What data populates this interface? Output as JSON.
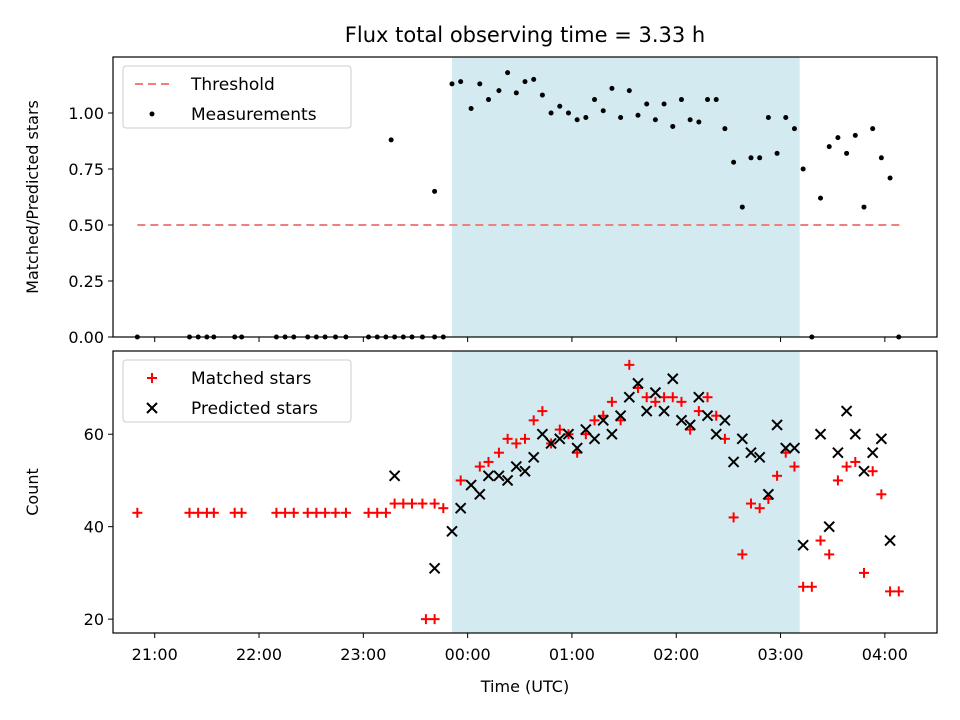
{
  "chart_data": {
    "title": "Flux total observing time = 3.33 h",
    "xlabel": "Time (UTC)",
    "x_unit": "UTC time",
    "xlim": [
      "20:36",
      "04:30"
    ],
    "x_ticks": [
      "21:00",
      "22:00",
      "23:00",
      "00:00",
      "01:00",
      "02:00",
      "03:00",
      "04:00"
    ],
    "shaded_interval": [
      "23:51",
      "03:11"
    ],
    "shade_color": "#d3eaf0",
    "panels": [
      {
        "type": "scatter",
        "ylabel": "Matched/Predicted stars",
        "ylim": [
          0,
          1.25
        ],
        "y_ticks": [
          "0.00",
          "0.25",
          "0.50",
          "0.75",
          "1.00"
        ],
        "legend_position": "top-left",
        "series": [
          {
            "name": "Threshold",
            "type": "line",
            "style": "dashed",
            "color": "#f08080",
            "points": [
              [
                "20:50",
                0.5
              ],
              [
                "04:10",
                0.5
              ]
            ]
          },
          {
            "name": "Measurements",
            "type": "scatter",
            "marker": "dot",
            "color": "#000000",
            "points": [
              [
                "20:50",
                0
              ],
              [
                "21:20",
                0
              ],
              [
                "21:25",
                0
              ],
              [
                "21:30",
                0
              ],
              [
                "21:34",
                0
              ],
              [
                "21:46",
                0
              ],
              [
                "21:50",
                0
              ],
              [
                "22:10",
                0
              ],
              [
                "22:15",
                0
              ],
              [
                "22:20",
                0
              ],
              [
                "22:28",
                0
              ],
              [
                "22:33",
                0
              ],
              [
                "22:38",
                0
              ],
              [
                "22:44",
                0
              ],
              [
                "22:50",
                0
              ],
              [
                "23:03",
                0
              ],
              [
                "23:08",
                0
              ],
              [
                "23:13",
                0
              ],
              [
                "23:18",
                0
              ],
              [
                "23:23",
                0
              ],
              [
                "23:28",
                0
              ],
              [
                "23:34",
                0
              ],
              [
                "23:41",
                0
              ],
              [
                "23:46",
                0
              ],
              [
                "23:16",
                0.88
              ],
              [
                "23:41",
                0.65
              ],
              [
                "23:51",
                1.13
              ],
              [
                "23:56",
                1.14
              ],
              [
                "00:02",
                1.02
              ],
              [
                "00:07",
                1.13
              ],
              [
                "00:12",
                1.06
              ],
              [
                "00:18",
                1.1
              ],
              [
                "00:23",
                1.18
              ],
              [
                "00:28",
                1.09
              ],
              [
                "00:33",
                1.14
              ],
              [
                "00:38",
                1.15
              ],
              [
                "00:43",
                1.08
              ],
              [
                "00:48",
                1.0
              ],
              [
                "00:53",
                1.03
              ],
              [
                "00:58",
                1.0
              ],
              [
                "01:03",
                0.97
              ],
              [
                "01:08",
                0.98
              ],
              [
                "01:13",
                1.06
              ],
              [
                "01:18",
                1.01
              ],
              [
                "01:23",
                1.11
              ],
              [
                "01:28",
                0.98
              ],
              [
                "01:33",
                1.1
              ],
              [
                "01:38",
                0.99
              ],
              [
                "01:43",
                1.04
              ],
              [
                "01:48",
                0.97
              ],
              [
                "01:53",
                1.04
              ],
              [
                "01:58",
                0.94
              ],
              [
                "02:03",
                1.06
              ],
              [
                "02:08",
                0.97
              ],
              [
                "02:13",
                0.96
              ],
              [
                "02:18",
                1.06
              ],
              [
                "02:23",
                1.06
              ],
              [
                "02:28",
                0.93
              ],
              [
                "02:33",
                0.78
              ],
              [
                "02:38",
                0.58
              ],
              [
                "02:43",
                0.8
              ],
              [
                "02:48",
                0.8
              ],
              [
                "02:53",
                0.98
              ],
              [
                "02:58",
                0.82
              ],
              [
                "03:03",
                0.98
              ],
              [
                "03:08",
                0.93
              ],
              [
                "03:13",
                0.75
              ],
              [
                "03:18",
                0
              ],
              [
                "03:23",
                0.62
              ],
              [
                "03:28",
                0.85
              ],
              [
                "03:33",
                0.89
              ],
              [
                "03:38",
                0.82
              ],
              [
                "03:43",
                0.9
              ],
              [
                "03:48",
                0.58
              ],
              [
                "03:53",
                0.93
              ],
              [
                "03:58",
                0.8
              ],
              [
                "04:03",
                0.71
              ],
              [
                "04:08",
                0
              ]
            ]
          }
        ]
      },
      {
        "type": "scatter",
        "ylabel": "Count",
        "ylim": [
          17,
          78
        ],
        "y_ticks": [
          "20",
          "40",
          "60"
        ],
        "legend_position": "top-left",
        "series": [
          {
            "name": "Matched stars",
            "type": "scatter",
            "marker": "plus",
            "color": "#ff0000",
            "points": [
              [
                "20:50",
                43
              ],
              [
                "21:20",
                43
              ],
              [
                "21:25",
                43
              ],
              [
                "21:30",
                43
              ],
              [
                "21:34",
                43
              ],
              [
                "21:46",
                43
              ],
              [
                "21:50",
                43
              ],
              [
                "22:10",
                43
              ],
              [
                "22:15",
                43
              ],
              [
                "22:20",
                43
              ],
              [
                "22:28",
                43
              ],
              [
                "22:33",
                43
              ],
              [
                "22:38",
                43
              ],
              [
                "22:44",
                43
              ],
              [
                "22:50",
                43
              ],
              [
                "23:03",
                43
              ],
              [
                "23:08",
                43
              ],
              [
                "23:13",
                43
              ],
              [
                "23:18",
                45
              ],
              [
                "23:23",
                45
              ],
              [
                "23:28",
                45
              ],
              [
                "23:34",
                45
              ],
              [
                "23:41",
                45
              ],
              [
                "23:36",
                20
              ],
              [
                "23:41",
                20
              ],
              [
                "23:46",
                44
              ],
              [
                "23:56",
                50
              ],
              [
                "24:07",
                53
              ],
              [
                "24:12",
                54
              ],
              [
                "24:18",
                56
              ],
              [
                "24:23",
                59
              ],
              [
                "24:28",
                58
              ],
              [
                "24:33",
                59
              ],
              [
                "24:38",
                63
              ],
              [
                "24:43",
                65
              ],
              [
                "24:48",
                58
              ],
              [
                "24:53",
                61
              ],
              [
                "24:58",
                60
              ],
              [
                "25:03",
                56
              ],
              [
                "25:08",
                60
              ],
              [
                "25:13",
                63
              ],
              [
                "25:18",
                64
              ],
              [
                "25:23",
                67
              ],
              [
                "25:28",
                63
              ],
              [
                "25:33",
                75
              ],
              [
                "25:38",
                70
              ],
              [
                "25:43",
                68
              ],
              [
                "25:48",
                67
              ],
              [
                "25:53",
                68
              ],
              [
                "25:58",
                68
              ],
              [
                "26:03",
                67
              ],
              [
                "26:08",
                61
              ],
              [
                "26:13",
                65
              ],
              [
                "26:18",
                68
              ],
              [
                "26:23",
                64
              ],
              [
                "26:28",
                59
              ],
              [
                "26:33",
                42
              ],
              [
                "26:38",
                34
              ],
              [
                "26:43",
                45
              ],
              [
                "26:48",
                44
              ],
              [
                "26:53",
                46
              ],
              [
                "26:58",
                51
              ],
              [
                "27:03",
                56
              ],
              [
                "27:08",
                53
              ],
              [
                "27:13",
                27
              ],
              [
                "27:18",
                27
              ],
              [
                "27:23",
                37
              ],
              [
                "27:28",
                34
              ],
              [
                "27:33",
                50
              ],
              [
                "27:38",
                53
              ],
              [
                "27:43",
                54
              ],
              [
                "27:48",
                30
              ],
              [
                "27:53",
                52
              ],
              [
                "27:58",
                47
              ],
              [
                "28:03",
                26
              ],
              [
                "28:08",
                26
              ]
            ]
          },
          {
            "name": "Predicted stars",
            "type": "scatter",
            "marker": "x",
            "color": "#000000",
            "points": [
              [
                "23:18",
                51
              ],
              [
                "23:41",
                31
              ],
              [
                "23:51",
                39
              ],
              [
                "23:56",
                44
              ],
              [
                "24:02",
                49
              ],
              [
                "24:07",
                47
              ],
              [
                "24:12",
                51
              ],
              [
                "24:18",
                51
              ],
              [
                "24:23",
                50
              ],
              [
                "24:28",
                53
              ],
              [
                "24:33",
                52
              ],
              [
                "24:38",
                55
              ],
              [
                "24:43",
                60
              ],
              [
                "24:48",
                58
              ],
              [
                "24:53",
                59
              ],
              [
                "24:58",
                60
              ],
              [
                "25:03",
                57
              ],
              [
                "25:08",
                61
              ],
              [
                "25:13",
                59
              ],
              [
                "25:18",
                63
              ],
              [
                "25:23",
                60
              ],
              [
                "25:28",
                64
              ],
              [
                "25:33",
                68
              ],
              [
                "25:38",
                71
              ],
              [
                "25:43",
                65
              ],
              [
                "25:48",
                69
              ],
              [
                "25:53",
                65
              ],
              [
                "25:58",
                72
              ],
              [
                "26:03",
                63
              ],
              [
                "26:08",
                62
              ],
              [
                "26:13",
                68
              ],
              [
                "26:18",
                64
              ],
              [
                "26:23",
                60
              ],
              [
                "26:28",
                63
              ],
              [
                "26:33",
                54
              ],
              [
                "26:38",
                59
              ],
              [
                "26:43",
                56
              ],
              [
                "26:48",
                55
              ],
              [
                "26:53",
                47
              ],
              [
                "26:58",
                62
              ],
              [
                "27:03",
                57
              ],
              [
                "27:08",
                57
              ],
              [
                "27:13",
                36
              ],
              [
                "27:23",
                60
              ],
              [
                "27:28",
                40
              ],
              [
                "27:33",
                56
              ],
              [
                "27:38",
                65
              ],
              [
                "27:43",
                60
              ],
              [
                "27:48",
                52
              ],
              [
                "27:53",
                56
              ],
              [
                "27:58",
                59
              ],
              [
                "28:03",
                37
              ]
            ]
          }
        ]
      }
    ]
  }
}
